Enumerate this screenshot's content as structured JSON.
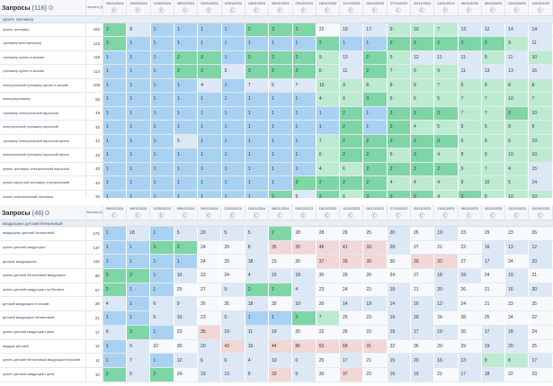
{
  "tables": [
    {
      "title": "Запросы",
      "count_label": "(116)",
      "freq_header": "Частота (!)",
      "group": "купить тренажер",
      "dates": [
        "26/02/2024",
        "19/02/2024",
        "12/02/2024",
        "05/02/2024",
        "29/01/2024",
        "22/01/2024",
        "15/01/2024",
        "08/01/2024",
        "25/12/2023",
        "18/12/2023",
        "11/12/2023",
        "04/12/2023",
        "27/11/2023",
        "20/11/2023",
        "13/11/2023",
        "06/11/2023",
        "30/10/2023",
        "23/10/2023",
        "16/10/2023"
      ],
      "rows": [
        {
          "kw": "купить тренажер",
          "fq": "182",
          "cells": [
            "2",
            "8",
            "1",
            "1",
            "1",
            "1",
            "2",
            "3",
            "2",
            "22",
            "19",
            "17",
            "9",
            "10",
            "7",
            "13",
            "12",
            "14",
            "14"
          ]
        },
        {
          "kw": "тренажер велотренажер",
          "fq": "122",
          "cells": [
            "2",
            "1",
            "1",
            "1",
            "1",
            "1",
            "1",
            "1",
            "1",
            "2",
            "1",
            "1",
            "2",
            "2",
            "2",
            "2",
            "2",
            "9",
            "11"
          ]
        },
        {
          "kw": "тренажер купить в москве",
          "fq": "118",
          "cells": [
            "1",
            "1",
            "1",
            "2",
            "3",
            "1",
            "3",
            "2",
            "2",
            "9",
            "13",
            "2",
            "5",
            "12",
            "11",
            "11",
            "9",
            "11",
            "10"
          ]
        },
        {
          "kw": "тренажер купить в москве",
          "fq": "114",
          "cells": [
            "1",
            "1",
            "1",
            "2",
            "2",
            "5",
            "3",
            "2",
            "2",
            "6",
            "11",
            "2",
            "7",
            "9",
            "9",
            "11",
            "13",
            "13",
            "16"
          ]
        },
        {
          "kw": "электрический тренажер купить в москве",
          "fq": "109",
          "cells": [
            "1",
            "1",
            "1",
            "1",
            "4",
            "1",
            "7",
            "6",
            "7",
            "10",
            "9",
            "8",
            "8",
            "8",
            "7",
            "6",
            "9",
            "8",
            "8"
          ]
        },
        {
          "kw": "электротренажер",
          "fq": "50",
          "cells": [
            "1",
            "1",
            "1",
            "1",
            "1",
            "1",
            "1",
            "1",
            "1",
            "4",
            "6",
            "3",
            "5",
            "6",
            "5",
            "7",
            "7",
            "10",
            "7"
          ]
        },
        {
          "kw": "тренажер электрический взрослый",
          "fq": "48",
          "cells": [
            "1",
            "1",
            "1",
            "1",
            "1",
            "1",
            "1",
            "1",
            "1",
            "1",
            "2",
            "1",
            "2",
            "3",
            "3",
            "7",
            "7",
            "2",
            "10"
          ]
        },
        {
          "kw": "электрический тренажер взрослый",
          "fq": "46",
          "cells": [
            "1",
            "1",
            "1",
            "1",
            "1",
            "1",
            "1",
            "1",
            "1",
            "1",
            "2",
            "1",
            "2",
            "4",
            "5",
            "5",
            "5",
            "8",
            "9"
          ]
        },
        {
          "kw": "тренажер электрический взрослый купить",
          "fq": "42",
          "cells": [
            "1",
            "1",
            "1",
            "5",
            "1",
            "1",
            "1",
            "1",
            "1",
            "7",
            "2",
            "2",
            "2",
            "2",
            "3",
            "5",
            "9",
            "8",
            "10"
          ]
        },
        {
          "kw": "электрический тренажер взрослый купить",
          "fq": "40",
          "cells": [
            "1",
            "1",
            "1",
            "1",
            "1",
            "1",
            "1",
            "1",
            "1",
            "6",
            "2",
            "2",
            "6",
            "3",
            "4",
            "8",
            "9",
            "10",
            "10"
          ]
        },
        {
          "kw": "купить тренажер электрический взрослый",
          "fq": "40",
          "cells": [
            "1",
            "1",
            "1",
            "1",
            "1",
            "1",
            "1",
            "1",
            "1",
            "4",
            "6",
            "2",
            "2",
            "3",
            "2",
            "9",
            "7",
            "4",
            "15"
          ]
        },
        {
          "kw": "купить взрослый тренажер электрический",
          "fq": "40",
          "cells": [
            "1",
            "1",
            "1",
            "1",
            "1",
            "1",
            "1",
            "1",
            "3",
            "2",
            "2",
            "2",
            "4",
            "4",
            "4",
            "9",
            "10",
            "5",
            "14"
          ]
        },
        {
          "kw": "купить электрический тренажер",
          "fq": "20",
          "cells": [
            "1",
            "1",
            "1",
            "1",
            "1",
            "1",
            "1",
            "2",
            "5",
            "2",
            "6",
            "3",
            "3",
            "3",
            "4",
            "3",
            "9",
            "10",
            "10"
          ]
        }
      ]
    },
    {
      "title": "Запросы",
      "count_label": "(46)",
      "freq_header": "Частота (!)",
      "group": "квадроцикл детский бензиновый",
      "dates": [
        "26/02/2024",
        "19/02/2024",
        "12/02/2024",
        "05/02/2024",
        "29/01/2024",
        "22/01/2024",
        "15/01/2024",
        "08/01/2024",
        "25/12/2023",
        "18/12/2023",
        "11/12/2023",
        "04/12/2023",
        "27/11/2023",
        "20/11/2023",
        "13/11/2023",
        "06/11/2023",
        "30/10/2023",
        "23/10/2023",
        "16/10/2023"
      ],
      "rows": [
        {
          "kw": "квадроцикл детский бензиновый",
          "fq": "272",
          "cells": [
            "1",
            "18",
            "1",
            "5",
            "20",
            "5",
            "5",
            "2",
            "28",
            "28",
            "29",
            "25",
            "20",
            "26",
            "19",
            "23",
            "29",
            "23",
            "26"
          ]
        },
        {
          "kw": "купить детский квадроцикл",
          "fq": "137",
          "cells": [
            "1",
            "1",
            "3",
            "2",
            "24",
            "29",
            "8",
            "35",
            "35",
            "46",
            "41",
            "33",
            "20",
            "27",
            "21",
            "22",
            "16",
            "13",
            "12"
          ]
        },
        {
          "kw": "детские квадроциклы",
          "fq": "115",
          "cells": [
            "1",
            "1",
            "1",
            "1",
            "24",
            "29",
            "18",
            "23",
            "26",
            "37",
            "39",
            "39",
            "30",
            "39",
            "33",
            "27",
            "17",
            "24",
            "20"
          ]
        },
        {
          "kw": "купить детский бензиновый квадроцикл",
          "fq": "98",
          "cells": [
            "2",
            "2",
            "1",
            "10",
            "23",
            "24",
            "4",
            "10",
            "18",
            "30",
            "29",
            "26",
            "24",
            "27",
            "18",
            "19",
            "24",
            "19",
            "21"
          ]
        },
        {
          "kw": "купить детский квадроцикл на бензине",
          "fq": "67",
          "cells": [
            "2",
            "1",
            "1",
            "25",
            "27",
            "9",
            "2",
            "2",
            "4",
            "23",
            "24",
            "22",
            "18",
            "21",
            "20",
            "26",
            "21",
            "16",
            "20"
          ]
        },
        {
          "kw": "детский квадроцикл в москве",
          "fq": "28",
          "cells": [
            "4",
            "1",
            "6",
            "9",
            "26",
            "26",
            "18",
            "30",
            "10",
            "26",
            "14",
            "19",
            "14",
            "16",
            "12",
            "24",
            "21",
            "23",
            "25"
          ]
        },
        {
          "kw": "детский квадроцикл бензиновый",
          "fq": "21",
          "cells": [
            "1",
            "1",
            "5",
            "10",
            "23",
            "5",
            "1",
            "1",
            "3",
            "7",
            "25",
            "23",
            "19",
            "20",
            "24",
            "28",
            "25",
            "24",
            "22"
          ]
        },
        {
          "kw": "купить детский квадроцикл цена",
          "fq": "17",
          "cells": [
            "6",
            "3",
            "1",
            "23",
            "35",
            "19",
            "11",
            "19",
            "25",
            "22",
            "26",
            "23",
            "19",
            "17",
            "19",
            "26",
            "17",
            "18",
            "24"
          ]
        },
        {
          "kw": "квадрик детский",
          "fq": "14",
          "cells": [
            "1",
            "9",
            "22",
            "30",
            "20",
            "43",
            "16",
            "44",
            "86",
            "52",
            "68",
            "31",
            "22",
            "26",
            "29",
            "29",
            "19",
            "20",
            "25"
          ]
        },
        {
          "kw": "купить детский бензиновый квадроцикл в москве",
          "fq": "11",
          "cells": [
            "1",
            "7",
            "1",
            "12",
            "6",
            "6",
            "4",
            "10",
            "6",
            "25",
            "17",
            "21",
            "15",
            "20",
            "16",
            "13",
            "9",
            "8",
            "17"
          ]
        },
        {
          "kw": "купить детский квадроцикл цена",
          "fq": "10",
          "cells": [
            "2",
            "6",
            "2",
            "24",
            "19",
            "13",
            "9",
            "33",
            "9",
            "30",
            "37",
            "23",
            "16",
            "19",
            "21",
            "17",
            "18",
            "22",
            "23"
          ]
        }
      ]
    }
  ],
  "colors": {
    "top3": "#7ed5a6",
    "top10": "#bdebd1",
    "pos1": "#a9d2f2",
    "mid": "#dce8f5",
    "low": "#f7fafd",
    "drop": "#f9c9c9",
    "deep": "#f2d7d7"
  }
}
